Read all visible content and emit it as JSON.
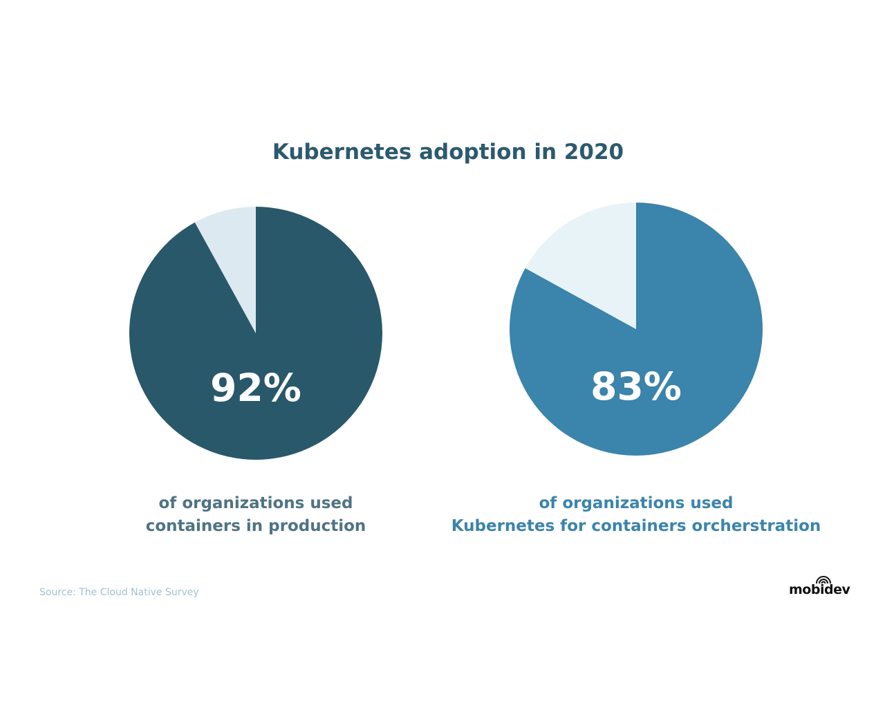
{
  "title": "Kubernetes adoption in 2020",
  "chart_data": [
    {
      "type": "pie",
      "values": [
        92,
        8
      ],
      "data_label": "92%",
      "caption_lines": [
        "of organizations used",
        "containers in production"
      ],
      "colors": {
        "main": "#29586b",
        "rest": "#dde9f1"
      }
    },
    {
      "type": "pie",
      "values": [
        83,
        17
      ],
      "data_label": "83%",
      "caption_lines": [
        "of organizations used",
        "Kubernetes for containers orcherstration"
      ],
      "colors": {
        "main": "#3b84ab",
        "rest": "#e8f3f7"
      }
    }
  ],
  "source": "Source: The Cloud Native Survey",
  "logo": {
    "text": "mobidev",
    "icon": "wifi-arcs-icon"
  }
}
